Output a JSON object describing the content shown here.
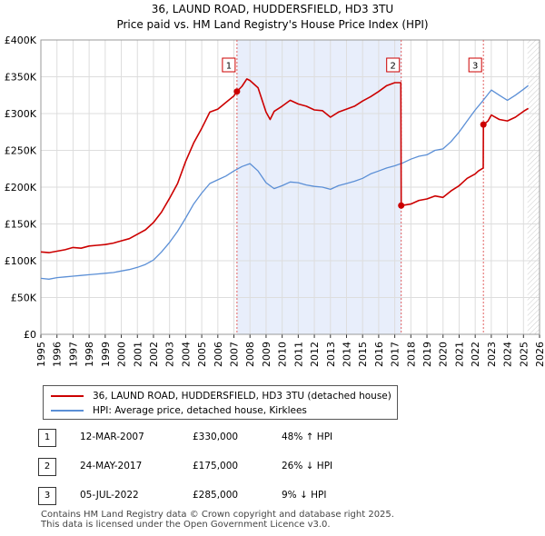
{
  "chart_data": {
    "type": "line",
    "title": "36, LAUND ROAD, HUDDERSFIELD, HD3 3TU",
    "subtitle": "Price paid vs. HM Land Registry's House Price Index (HPI)",
    "xlabel": "",
    "ylabel": "",
    "xlim": [
      1995,
      2026
    ],
    "ylim": [
      0,
      400000
    ],
    "y_ticks": [
      0,
      50000,
      100000,
      150000,
      200000,
      250000,
      300000,
      350000,
      400000
    ],
    "y_tick_labels": [
      "£0",
      "£50K",
      "£100K",
      "£150K",
      "£200K",
      "£250K",
      "£300K",
      "£350K",
      "£400K"
    ],
    "x_ticks": [
      1995,
      1996,
      1997,
      1998,
      1999,
      2000,
      2001,
      2002,
      2003,
      2004,
      2005,
      2006,
      2007,
      2008,
      2009,
      2010,
      2011,
      2012,
      2013,
      2014,
      2015,
      2016,
      2017,
      2018,
      2019,
      2020,
      2021,
      2022,
      2023,
      2024,
      2025,
      2026
    ],
    "x_tick_labels": [
      "1995",
      "1996",
      "1997",
      "1998",
      "1999",
      "2000",
      "2001",
      "2002",
      "2003",
      "2004",
      "2005",
      "2006",
      "2007",
      "2008",
      "2009",
      "2010",
      "2011",
      "2012",
      "2013",
      "2014",
      "2015",
      "2016",
      "2017",
      "2018",
      "2019",
      "2020",
      "2021",
      "2022",
      "2023",
      "2024",
      "2025",
      "2026"
    ],
    "grid": true,
    "legend_position": "below",
    "series": [
      {
        "name": "36, LAUND ROAD, HUDDERSFIELD, HD3 3TU (detached house)",
        "color": "#cc0000",
        "x": [
          1995.0,
          1995.5,
          1996.0,
          1996.5,
          1997.0,
          1997.5,
          1998.0,
          1998.5,
          1999.0,
          1999.5,
          2000.0,
          2000.5,
          2001.0,
          2001.5,
          2002.0,
          2002.5,
          2003.0,
          2003.5,
          2004.0,
          2004.5,
          2005.0,
          2005.5,
          2006.0,
          2006.5,
          2007.0,
          2007.19,
          2007.5,
          2007.8,
          2008.0,
          2008.5,
          2009.0,
          2009.25,
          2009.5,
          2010.0,
          2010.5,
          2011.0,
          2011.5,
          2012.0,
          2012.5,
          2013.0,
          2013.5,
          2014.0,
          2014.5,
          2015.0,
          2015.5,
          2016.0,
          2016.5,
          2017.0,
          2017.38,
          2017.4,
          2017.7,
          2018.0,
          2018.5,
          2019.0,
          2019.5,
          2020.0,
          2020.5,
          2021.0,
          2021.5,
          2022.0,
          2022.2,
          2022.5,
          2022.51,
          2022.8,
          2023.0,
          2023.5,
          2024.0,
          2024.5,
          2025.0,
          2025.3
        ],
        "values": [
          112000,
          111000,
          113000,
          115000,
          118000,
          117000,
          120000,
          121000,
          122000,
          124000,
          127000,
          130000,
          136000,
          142000,
          152000,
          166000,
          185000,
          205000,
          235000,
          260000,
          280000,
          302000,
          306000,
          315000,
          324000,
          330000,
          337000,
          347000,
          345000,
          335000,
          302000,
          292000,
          303000,
          310000,
          318000,
          313000,
          310000,
          305000,
          304000,
          295000,
          302000,
          306000,
          310000,
          317000,
          323000,
          330000,
          338000,
          342000,
          342000,
          175000,
          176000,
          177000,
          182000,
          184000,
          188000,
          186000,
          195000,
          202000,
          212000,
          218000,
          222000,
          226000,
          285000,
          290000,
          298000,
          292000,
          290000,
          295000,
          303000,
          307000
        ]
      },
      {
        "name": "HPI: Average price, detached house, Kirklees",
        "color": "#5b8fd6",
        "x": [
          1995.0,
          1995.5,
          1996.0,
          1996.5,
          1997.0,
          1997.5,
          1998.0,
          1998.5,
          1999.0,
          1999.5,
          2000.0,
          2000.5,
          2001.0,
          2001.5,
          2002.0,
          2002.5,
          2003.0,
          2003.5,
          2004.0,
          2004.5,
          2005.0,
          2005.5,
          2006.0,
          2006.5,
          2007.0,
          2007.5,
          2008.0,
          2008.5,
          2009.0,
          2009.5,
          2010.0,
          2010.5,
          2011.0,
          2011.5,
          2012.0,
          2012.5,
          2013.0,
          2013.5,
          2014.0,
          2014.5,
          2015.0,
          2015.5,
          2016.0,
          2016.5,
          2017.0,
          2017.5,
          2018.0,
          2018.5,
          2019.0,
          2019.5,
          2020.0,
          2020.5,
          2021.0,
          2021.5,
          2022.0,
          2022.5,
          2023.0,
          2023.5,
          2024.0,
          2024.5,
          2025.0,
          2025.3
        ],
        "values": [
          76000,
          75000,
          77000,
          78000,
          79000,
          80000,
          81000,
          82000,
          83000,
          84000,
          86000,
          88000,
          91000,
          95000,
          101000,
          112000,
          125000,
          140000,
          158000,
          177000,
          192000,
          205000,
          210000,
          215000,
          222000,
          228000,
          232000,
          222000,
          206000,
          198000,
          202000,
          207000,
          206000,
          203000,
          201000,
          200000,
          197000,
          202000,
          205000,
          208000,
          212000,
          218000,
          222000,
          226000,
          229000,
          233000,
          238000,
          242000,
          244000,
          250000,
          252000,
          262000,
          275000,
          290000,
          305000,
          318000,
          332000,
          325000,
          318000,
          325000,
          333000,
          338000
        ]
      }
    ],
    "sale_markers": [
      {
        "label": "1",
        "x": 2007.19,
        "value": 330000
      },
      {
        "label": "2",
        "x": 2017.4,
        "value": 175000
      },
      {
        "label": "3",
        "x": 2022.51,
        "value": 285000
      }
    ],
    "shaded_periods": [
      [
        2007.19,
        2017.4
      ]
    ],
    "forecast_start": 2025.25
  },
  "legend": {
    "property_label": "36, LAUND ROAD, HUDDERSFIELD, HD3 3TU (detached house)",
    "hpi_label": "HPI: Average price, detached house, Kirklees"
  },
  "sales": [
    {
      "num": "1",
      "date": "12-MAR-2007",
      "price": "£330,000",
      "hpi": "48% ↑ HPI"
    },
    {
      "num": "2",
      "date": "24-MAY-2017",
      "price": "£175,000",
      "hpi": "26% ↓ HPI"
    },
    {
      "num": "3",
      "date": "05-JUL-2022",
      "price": "£285,000",
      "hpi": "9% ↓ HPI"
    }
  ],
  "footer": {
    "line1": "Contains HM Land Registry data © Crown copyright and database right 2025.",
    "line2": "This data is licensed under the Open Government Licence v3.0."
  }
}
